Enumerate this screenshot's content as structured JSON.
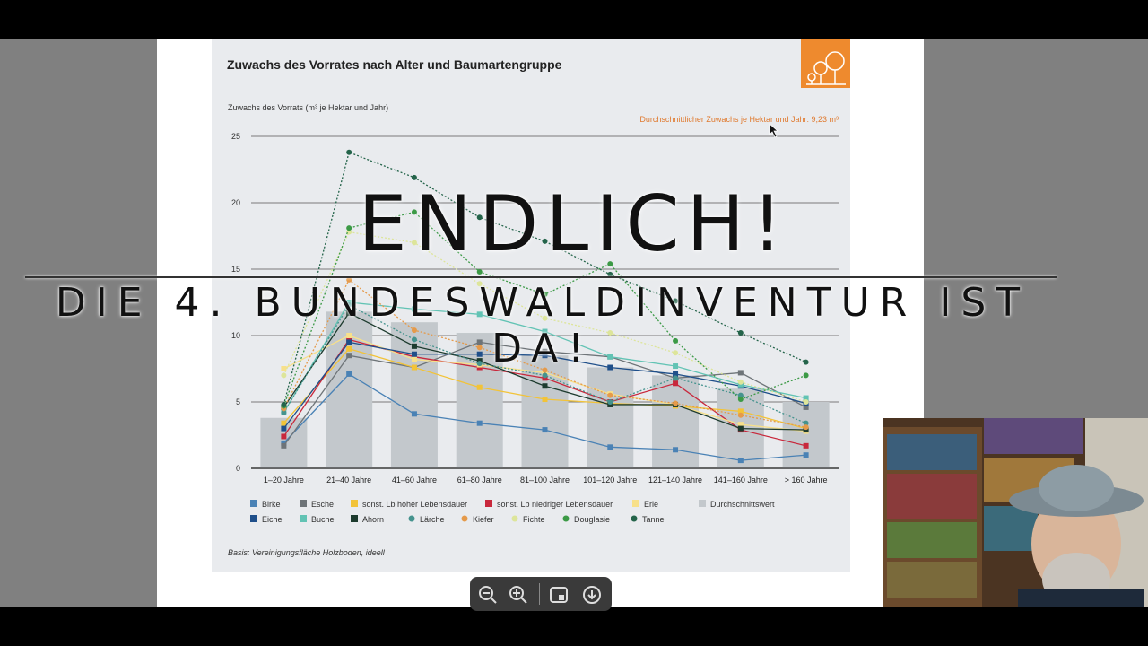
{
  "overlay": {
    "title": "ENDLICH!",
    "subtitle": "DIE 4. BUNDESWALDINVENTUR IST DA!"
  },
  "chart_meta": {
    "title": "Zuwachs des Vorrates nach Alter und Baumartengruppe",
    "ylabel": "Zuwachs des Vorrats (m³ je Hektar und Jahr)",
    "avg_note": "Durchschnittlicher Zuwachs je Hektar und Jahr: 9,23 m³",
    "basis": "Basis: Vereinigungsfläche Holzboden, ideell"
  },
  "toolbar": {
    "zoom_out": "−",
    "zoom_in": "+",
    "page_icon": "page-icon",
    "download_icon": "download-icon"
  },
  "colors": {
    "panel": "#e9ebee",
    "bar": "#c3c8cc",
    "accent": "#e07a2f"
  },
  "chart_data": {
    "type": "line",
    "categories": [
      "1–20 Jahre",
      "21–40 Jahre",
      "41–60 Jahre",
      "61–80 Jahre",
      "81–100 Jahre",
      "101–120 Jahre",
      "121–140 Jahre",
      "141–160 Jahre",
      "> 160 Jahre"
    ],
    "ylim": [
      0,
      25
    ],
    "yticks": [
      0,
      5,
      10,
      15,
      20,
      25
    ],
    "grid": true,
    "legend_position": "bottom",
    "bars": {
      "name": "Durchschnittswert",
      "color": "#c3c8cc",
      "values": [
        3.8,
        11.8,
        11.0,
        10.2,
        8.5,
        7.6,
        7.0,
        6.0,
        5.0
      ]
    },
    "series": [
      {
        "name": "Birke",
        "color": "#4a82b5",
        "marker": "square",
        "dashed": false,
        "values": [
          1.9,
          7.1,
          4.1,
          3.4,
          2.9,
          1.6,
          1.4,
          0.6,
          1.0
        ]
      },
      {
        "name": "Esche",
        "color": "#6e7478",
        "marker": "square",
        "dashed": false,
        "values": [
          1.7,
          8.5,
          7.6,
          9.5,
          8.8,
          8.4,
          6.8,
          7.2,
          4.6
        ]
      },
      {
        "name": "sonst. Lb hoher Lebensdauer",
        "color": "#f2c338",
        "marker": "square",
        "dashed": false,
        "values": [
          3.4,
          9.0,
          7.6,
          6.1,
          5.2,
          4.9,
          4.7,
          4.3,
          3.0
        ]
      },
      {
        "name": "sonst. Lb niedriger Lebensdauer",
        "color": "#c8283c",
        "marker": "square",
        "dashed": false,
        "values": [
          2.4,
          9.7,
          8.4,
          7.6,
          6.8,
          5.0,
          6.4,
          2.9,
          1.7
        ]
      },
      {
        "name": "Erle",
        "color": "#f7e08a",
        "marker": "square",
        "dashed": false,
        "values": [
          7.5,
          10.0,
          8.2,
          7.8,
          7.2,
          5.6,
          4.8,
          3.3,
          2.8
        ]
      },
      {
        "name": "Eiche",
        "color": "#1f4f8a",
        "marker": "square",
        "dashed": false,
        "values": [
          3.0,
          9.5,
          8.6,
          8.6,
          8.5,
          7.6,
          7.1,
          6.2,
          4.9
        ]
      },
      {
        "name": "Buche",
        "color": "#62c3b4",
        "marker": "square",
        "dashed": false,
        "values": [
          4.2,
          12.5,
          12.0,
          11.6,
          10.3,
          8.4,
          7.7,
          6.3,
          5.3
        ]
      },
      {
        "name": "Ahorn",
        "color": "#1d3b2e",
        "marker": "square",
        "dashed": false,
        "values": [
          4.6,
          11.7,
          9.2,
          8.1,
          6.2,
          4.8,
          4.8,
          3.0,
          2.9
        ]
      },
      {
        "name": "Lärche",
        "color": "#45938e",
        "marker": "circle",
        "dashed": true,
        "values": [
          4.2,
          12.3,
          9.7,
          7.9,
          7.0,
          5.0,
          6.8,
          5.5,
          3.4
        ]
      },
      {
        "name": "Kiefer",
        "color": "#e59a4a",
        "marker": "circle",
        "dashed": true,
        "values": [
          4.5,
          14.2,
          10.4,
          9.1,
          7.4,
          5.5,
          4.9,
          4.0,
          3.1
        ]
      },
      {
        "name": "Fichte",
        "color": "#dde59a",
        "marker": "circle",
        "dashed": true,
        "values": [
          7.0,
          17.8,
          17.0,
          13.9,
          11.3,
          10.2,
          8.7,
          6.5,
          5.0
        ]
      },
      {
        "name": "Douglasie",
        "color": "#3c9a46",
        "marker": "circle",
        "dashed": true,
        "values": [
          4.7,
          18.1,
          19.3,
          14.8,
          13.1,
          15.4,
          9.6,
          5.2,
          7.0
        ]
      },
      {
        "name": "Tanne",
        "color": "#24644a",
        "marker": "circle",
        "dashed": true,
        "values": [
          4.8,
          23.8,
          21.9,
          18.9,
          17.1,
          14.6,
          12.6,
          10.2,
          8.0
        ]
      }
    ],
    "legend": [
      {
        "name": "Birke",
        "color": "#4a82b5",
        "shape": "square"
      },
      {
        "name": "Esche",
        "color": "#6e7478",
        "shape": "square"
      },
      {
        "name": "sonst. Lb hoher Lebensdauer",
        "color": "#f2c338",
        "shape": "square"
      },
      {
        "name": "sonst. Lb niedriger Lebensdauer",
        "color": "#c8283c",
        "shape": "square"
      },
      {
        "name": "Erle",
        "color": "#f7e08a",
        "shape": "square"
      },
      {
        "name": "Durchschnittswert",
        "color": "#c3c8cc",
        "shape": "square"
      },
      {
        "name": "Eiche",
        "color": "#1f4f8a",
        "shape": "square"
      },
      {
        "name": "Buche",
        "color": "#62c3b4",
        "shape": "square"
      },
      {
        "name": "Ahorn",
        "color": "#1d3b2e",
        "shape": "square"
      },
      {
        "name": "Lärche",
        "color": "#45938e",
        "shape": "circle"
      },
      {
        "name": "Kiefer",
        "color": "#e59a4a",
        "shape": "circle"
      },
      {
        "name": "Fichte",
        "color": "#dde59a",
        "shape": "circle"
      },
      {
        "name": "Douglasie",
        "color": "#3c9a46",
        "shape": "circle"
      },
      {
        "name": "Tanne",
        "color": "#24644a",
        "shape": "circle"
      }
    ]
  }
}
